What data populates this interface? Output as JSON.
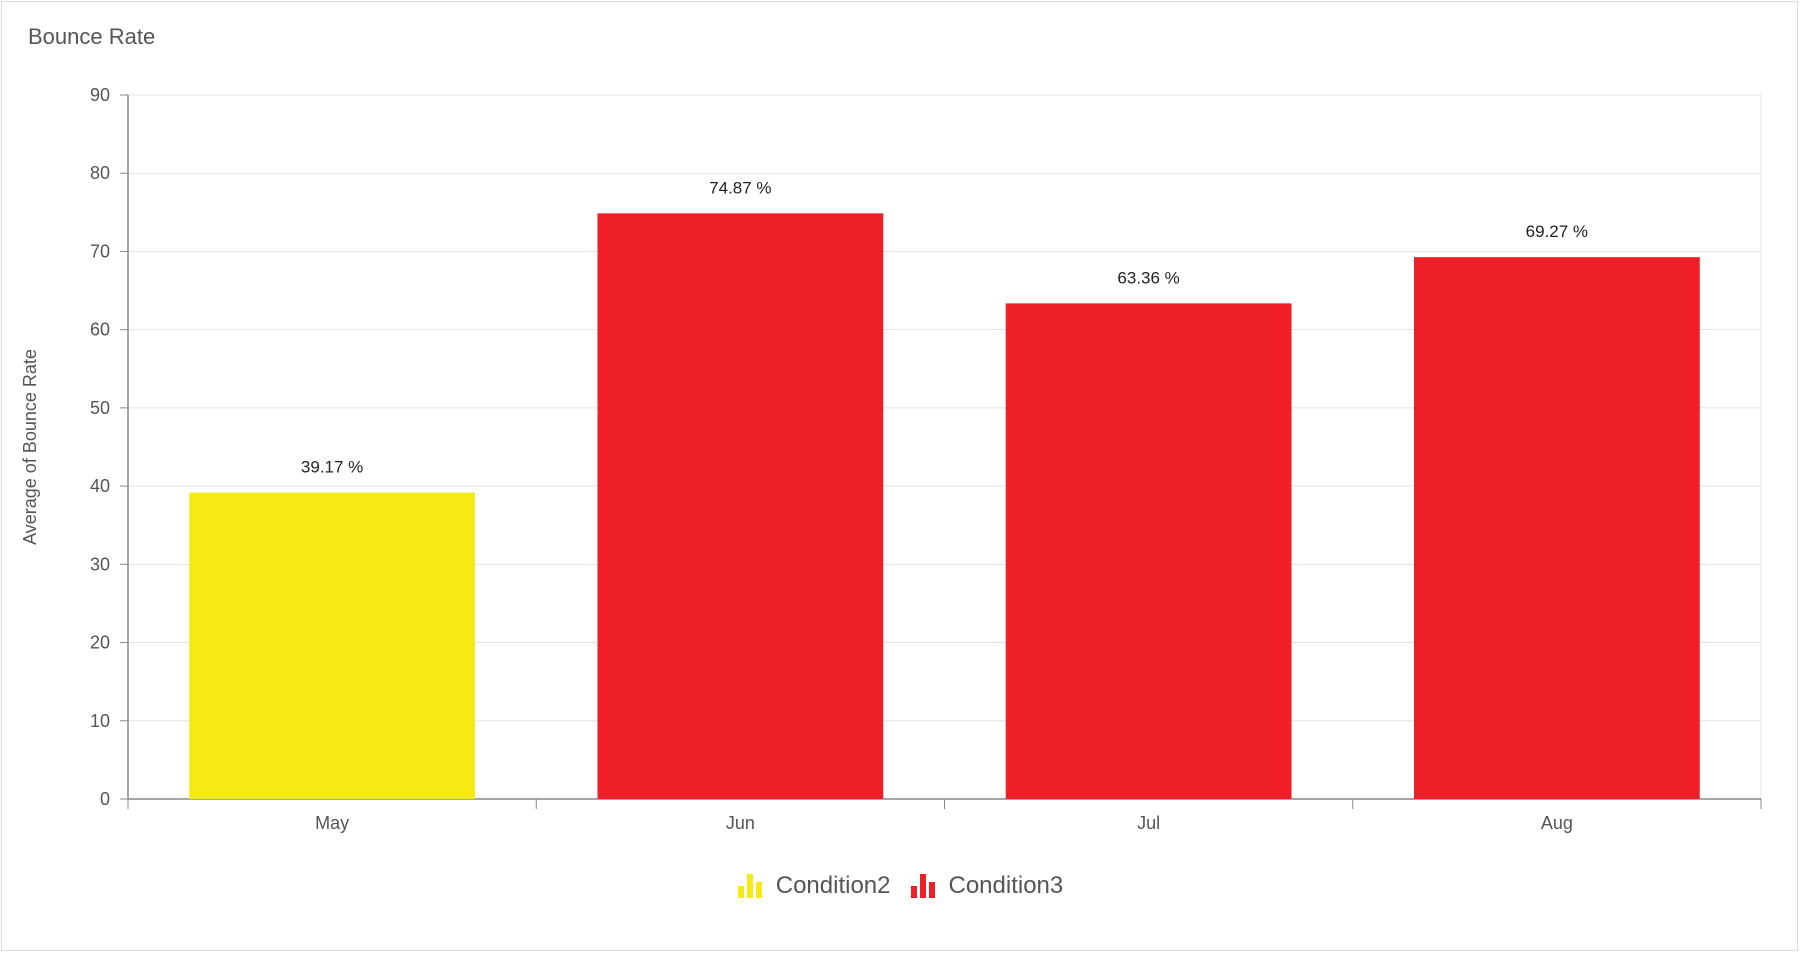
{
  "card": {
    "title": "Bounce Rate"
  },
  "colors": {
    "condition2": "#F5EA14",
    "condition3": "#EE1F26",
    "grid": "#e3e3e3",
    "axis": "#888888"
  },
  "legend": [
    {
      "label": "Condition2",
      "color": "#F5EA14",
      "icon": "bar-chart-icon"
    },
    {
      "label": "Condition3",
      "color": "#EE1F26",
      "icon": "bar-chart-icon"
    }
  ],
  "chart_data": {
    "type": "bar",
    "categories": [
      "May",
      "Jun",
      "Jul",
      "Aug"
    ],
    "values": [
      39.17,
      74.87,
      63.36,
      69.27
    ],
    "labels": [
      "39.17 %",
      "74.87 %",
      "63.36 %",
      "69.27 %"
    ],
    "bar_series": [
      "Condition2",
      "Condition3",
      "Condition3",
      "Condition3"
    ],
    "bar_colors": [
      "#F5EA14",
      "#EE1F26",
      "#EE1F26",
      "#EE1F26"
    ],
    "ylabel": "Average of Bounce Rate",
    "xlabel": "",
    "ylim": [
      0,
      90
    ],
    "yticks": [
      0,
      10,
      20,
      30,
      40,
      50,
      60,
      70,
      80,
      90
    ],
    "grid": true,
    "legend_position": "bottom"
  }
}
